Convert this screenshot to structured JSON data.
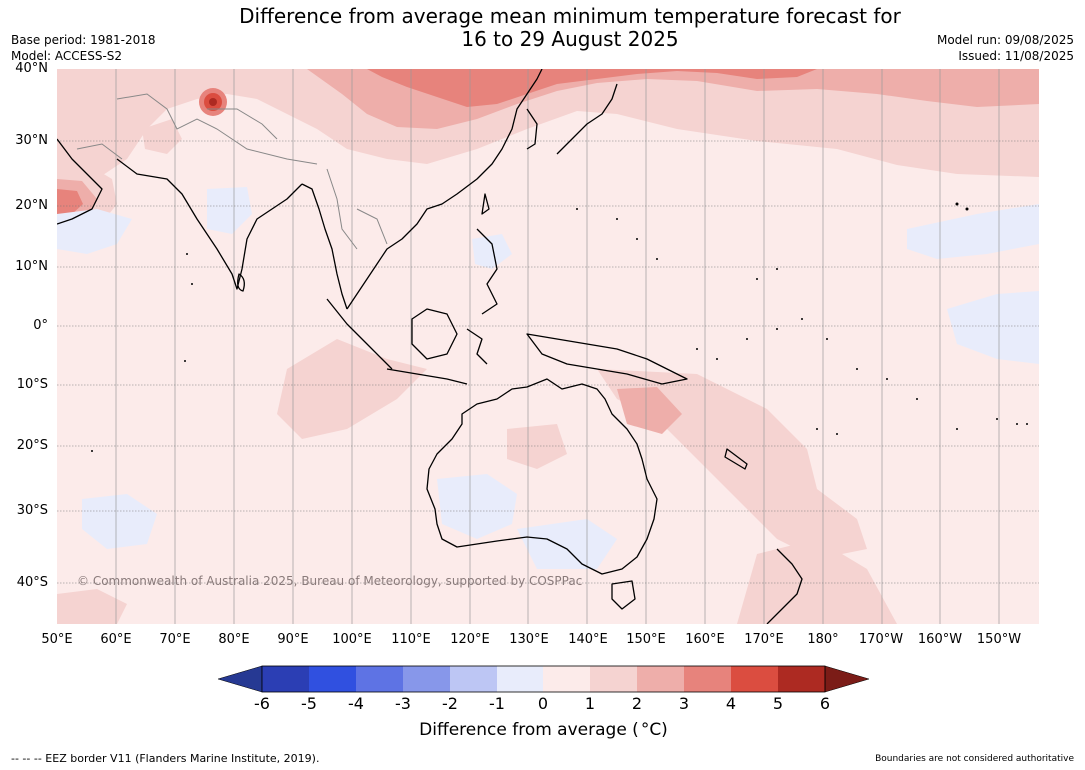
{
  "title": {
    "line1": "Difference from average mean minimum temperature forecast for",
    "line2": "16 to 29 August 2025"
  },
  "meta": {
    "base_period": "Base period: 1981-2018",
    "model": "Model: ACCESS-S2",
    "model_run": "Model run: 09/08/2025",
    "issued": "Issued: 11/08/2025"
  },
  "map": {
    "copyright": "© Commonwealth of Australia 2025, Bureau of Meteorology, supported by COSPPac",
    "lat_labels": [
      "40°N",
      "30°N",
      "20°N",
      "10°N",
      "0°",
      "10°S",
      "20°S",
      "30°S",
      "40°S"
    ],
    "lon_labels": [
      "50°E",
      "60°E",
      "70°E",
      "80°E",
      "90°E",
      "100°E",
      "110°E",
      "120°E",
      "130°E",
      "140°E",
      "150°E",
      "160°E",
      "170°E",
      "180°",
      "170°W",
      "160°W",
      "150°W"
    ],
    "colors": {
      "background_anomaly": "#fcebea",
      "warm_1_2": "#f5d3d1",
      "warm_2_3": "#eeaeaa",
      "warm_3_4": "#e7837c",
      "warm_4_5": "#db4d40",
      "cool_0_-1": "#e8ecfb",
      "coast": "#000000",
      "border": "#888888"
    }
  },
  "colorbar": {
    "label_main": "Difference from average (",
    "label_unit": "°C)",
    "ticks": [
      "-6",
      "-5",
      "-4",
      "-3",
      "-2",
      "-1",
      "0",
      "1",
      "2",
      "3",
      "4",
      "5",
      "6"
    ],
    "colors": [
      "#263993",
      "#2b3eb4",
      "#3050e0",
      "#5e73e4",
      "#8797ea",
      "#bdc6f4",
      "#e8ecfb",
      "#fcebea",
      "#f5d3d1",
      "#eeaeaa",
      "#e7837c",
      "#db4d40",
      "#ad2a22",
      "#7b1c17"
    ]
  },
  "footer": {
    "left": "--  --  -- EEZ border V11 (Flanders Marine Institute, 2019).",
    "right": "Boundaries are not considered authoritative"
  }
}
